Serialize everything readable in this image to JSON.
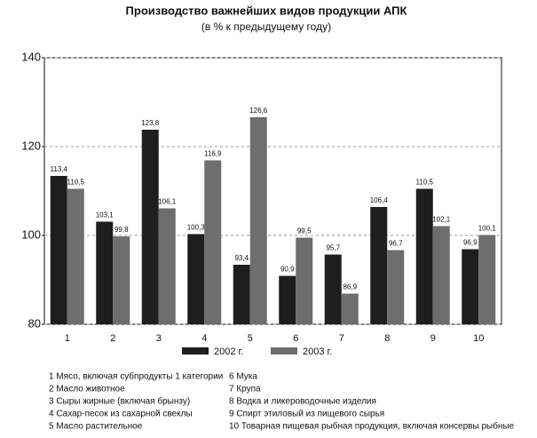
{
  "chart_data": {
    "type": "bar",
    "title": "Производство важнейших видов продукции АПК",
    "subtitle": "(в % к предыдущему году)",
    "categories": [
      "1",
      "2",
      "3",
      "4",
      "5",
      "6",
      "7",
      "8",
      "9",
      "10"
    ],
    "series": [
      {
        "name": "2002 г.",
        "color": "#1e1e1e",
        "values": [
          113.4,
          103.1,
          123.8,
          100.3,
          93.4,
          90.9,
          95.7,
          106.4,
          110.5,
          96.9
        ],
        "value_labels": [
          "113,4",
          "103,1",
          "123,8",
          "100,3",
          "93,4",
          "90,9",
          "95,7",
          "106,4",
          "110,5",
          "96,9"
        ]
      },
      {
        "name": "2003 г.",
        "color": "#6e6e6e",
        "values": [
          110.5,
          99.8,
          106.1,
          116.9,
          126.6,
          99.5,
          86.9,
          96.7,
          102.1,
          100.1
        ],
        "value_labels": [
          "110,5",
          "99,8",
          "106,1",
          "116,9",
          "126,6",
          "99,5",
          "86,9",
          "96,7",
          "102,1",
          "100,1"
        ]
      }
    ],
    "ylim": [
      80,
      140
    ],
    "yticks": [
      80,
      100,
      120,
      140
    ],
    "grid": true,
    "notes": [
      "1  Мясо, включая субпродукты 1 категории",
      "2  Масло животное",
      "3  Сыры жирные (включая брынзу)",
      "4  Сахар-песок из сахарной свеклы",
      "5  Масло растительное",
      "6  Мука",
      "7  Крупа",
      "8  Водка и ликероводочные изделия",
      "9  Спирт этиловый из пищевого сырья",
      "10 Товарная пищевая рыбная продукция, включая консервы рыбные"
    ]
  }
}
